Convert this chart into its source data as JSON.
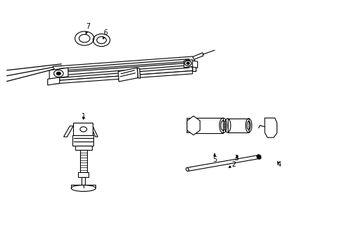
{
  "background_color": "#ffffff",
  "line_color": "#000000",
  "fig_width": 4.89,
  "fig_height": 3.6,
  "dpi": 100,
  "part_labels": {
    "1": [
      0.245,
      0.535,
      0.245,
      0.515
    ],
    "2": [
      0.685,
      0.345,
      0.67,
      0.33
    ],
    "3": [
      0.695,
      0.37,
      0.695,
      0.39
    ],
    "4": [
      0.82,
      0.345,
      0.81,
      0.365
    ],
    "5": [
      0.63,
      0.365,
      0.63,
      0.39
    ],
    "6": [
      0.31,
      0.87,
      0.302,
      0.842
    ],
    "7": [
      0.258,
      0.895,
      0.252,
      0.862
    ]
  }
}
